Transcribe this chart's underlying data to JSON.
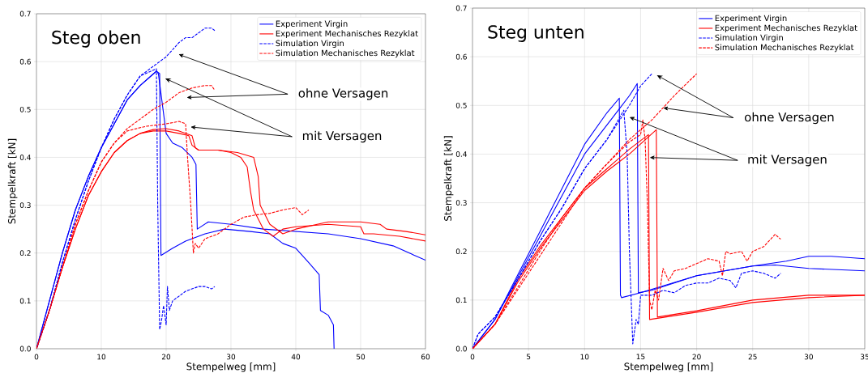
{
  "chart_data": [
    {
      "type": "line",
      "title": "Steg oben",
      "xlabel": "Stempelweg [mm]",
      "ylabel": "Stempelkraft [kN]",
      "xlim": [
        0,
        60
      ],
      "ylim": [
        0,
        0.7
      ],
      "xticks": [
        0,
        10,
        20,
        30,
        40,
        50,
        60
      ],
      "yticks": [
        {
          "value": 0,
          "label": "0.0"
        },
        0.1,
        0.2,
        0.3,
        0.4,
        0.5,
        0.6,
        0.7
      ],
      "grid": true,
      "legend": "top right",
      "annotations": [
        "ohne Versagen",
        "mit Versagen"
      ],
      "series": [
        {
          "name": "Experiment Virgin",
          "color": "#0000ff",
          "line_style": "solid",
          "x": [
            0,
            2,
            4,
            6,
            8,
            10,
            12,
            14,
            16,
            18.5,
            18.8,
            20,
            21,
            22.5,
            24,
            24.6,
            24.8,
            26.5,
            30,
            35,
            40,
            45,
            50,
            55,
            60
          ],
          "values": [
            0,
            0.1,
            0.2,
            0.29,
            0.36,
            0.42,
            0.47,
            0.52,
            0.55,
            0.58,
            0.575,
            0.45,
            0.43,
            0.42,
            0.4,
            0.385,
            0.25,
            0.265,
            0.26,
            0.25,
            0.245,
            0.24,
            0.23,
            0.215,
            0.185
          ]
        },
        {
          "color": "#0000ff",
          "line_style": "solid",
          "x": [
            0,
            2,
            4,
            6,
            8,
            10,
            12,
            14,
            16,
            18.5,
            19,
            19.2,
            21,
            23,
            26,
            29,
            33,
            36,
            38,
            40,
            42,
            43.6,
            43.8,
            45,
            45.8,
            45.9
          ],
          "values": [
            0,
            0.1,
            0.2,
            0.29,
            0.36,
            0.42,
            0.47,
            0.52,
            0.55,
            0.58,
            0.575,
            0.195,
            0.21,
            0.225,
            0.24,
            0.25,
            0.245,
            0.24,
            0.22,
            0.21,
            0.18,
            0.155,
            0.08,
            0.07,
            0.05,
            0
          ]
        },
        {
          "name": "Experiment Mechanisches Rezyklat",
          "color": "#ff0000",
          "line_style": "solid",
          "x": [
            0,
            2,
            4,
            6,
            8,
            10,
            12,
            14,
            16,
            18,
            20,
            22,
            23.5,
            24,
            25,
            28,
            30,
            31.5,
            32.5,
            33,
            33.5,
            35,
            36.5,
            38,
            40,
            45,
            50,
            50.5,
            52,
            56,
            60
          ],
          "values": [
            0,
            0.08,
            0.17,
            0.25,
            0.32,
            0.37,
            0.41,
            0.435,
            0.45,
            0.455,
            0.455,
            0.45,
            0.445,
            0.425,
            0.415,
            0.415,
            0.41,
            0.4,
            0.38,
            0.33,
            0.29,
            0.25,
            0.235,
            0.25,
            0.255,
            0.26,
            0.255,
            0.24,
            0.24,
            0.235,
            0.225
          ]
        },
        {
          "color": "#ff0000",
          "line_style": "solid",
          "x": [
            0,
            2,
            4,
            6,
            8,
            10,
            12,
            14,
            16,
            18,
            20,
            22,
            24,
            24.5,
            25,
            28,
            31,
            33.5,
            34.2,
            34.5,
            36,
            38,
            40,
            45,
            50,
            53,
            54,
            57,
            60
          ],
          "values": [
            0,
            0.08,
            0.17,
            0.25,
            0.32,
            0.37,
            0.41,
            0.435,
            0.45,
            0.458,
            0.46,
            0.455,
            0.445,
            0.42,
            0.415,
            0.415,
            0.41,
            0.4,
            0.36,
            0.3,
            0.26,
            0.24,
            0.25,
            0.265,
            0.265,
            0.26,
            0.25,
            0.245,
            0.238
          ]
        },
        {
          "name": "Simulation Virgin",
          "color": "#0000ff",
          "line_style": "dashed",
          "x": [
            0,
            2,
            4,
            6,
            8,
            10,
            12,
            14,
            16,
            18,
            20,
            22,
            23,
            24,
            26,
            27,
            27.5
          ],
          "values": [
            0,
            0.08,
            0.18,
            0.27,
            0.35,
            0.42,
            0.48,
            0.53,
            0.57,
            0.59,
            0.61,
            0.64,
            0.65,
            0.65,
            0.67,
            0.67,
            0.665
          ]
        },
        {
          "color": "#0000ff",
          "line_style": "dashed",
          "x": [
            0,
            2,
            4,
            6,
            8,
            10,
            12,
            14,
            16,
            18.5,
            18.7,
            19,
            19.3,
            19.6,
            20,
            20.2,
            20.5,
            21,
            22,
            23,
            24,
            25,
            26,
            27,
            27.5
          ],
          "values": [
            0,
            0.08,
            0.18,
            0.27,
            0.35,
            0.42,
            0.48,
            0.53,
            0.57,
            0.585,
            0.3,
            0.04,
            0.06,
            0.09,
            0.05,
            0.13,
            0.08,
            0.1,
            0.11,
            0.12,
            0.125,
            0.13,
            0.13,
            0.125,
            0.13
          ]
        },
        {
          "name": "Simulation Mechanisches Rezyklat",
          "color": "#ff0000",
          "line_style": "dashed",
          "x": [
            0,
            2,
            4,
            6,
            8,
            10,
            12,
            14,
            16,
            18,
            20,
            22,
            24,
            26,
            27,
            27.5
          ],
          "values": [
            0,
            0.08,
            0.17,
            0.26,
            0.33,
            0.39,
            0.43,
            0.46,
            0.48,
            0.5,
            0.515,
            0.535,
            0.545,
            0.55,
            0.55,
            0.54
          ]
        },
        {
          "color": "#ff0000",
          "line_style": "dashed",
          "x": [
            0,
            2,
            4,
            6,
            8,
            10,
            12,
            14,
            16,
            17,
            20,
            22,
            23,
            23.3,
            23.8,
            24.2,
            24.5,
            25,
            26,
            28,
            30,
            32,
            34,
            36,
            38,
            40,
            41,
            42
          ],
          "values": [
            0,
            0.08,
            0.17,
            0.26,
            0.33,
            0.39,
            0.43,
            0.455,
            0.462,
            0.465,
            0.47,
            0.475,
            0.47,
            0.4,
            0.3,
            0.2,
            0.22,
            0.21,
            0.23,
            0.24,
            0.26,
            0.275,
            0.28,
            0.283,
            0.29,
            0.295,
            0.28,
            0.29
          ]
        }
      ]
    },
    {
      "type": "line",
      "title": "Steg unten",
      "xlabel": "Stempelweg [mm]",
      "ylabel": "Stempelkraft [kN]",
      "xlim": [
        0,
        35
      ],
      "ylim": [
        0,
        0.7
      ],
      "xticks": [
        0,
        5,
        10,
        15,
        20,
        25,
        30,
        35
      ],
      "yticks": [
        {
          "value": 0,
          "label": "0.0"
        },
        0.1,
        0.2,
        0.3,
        0.4,
        0.5,
        0.6,
        0.7
      ],
      "grid": true,
      "legend": "top right",
      "annotations": [
        {
          "text": "ohne Versagen",
          "x": 17,
          "y": 0.495
        },
        {
          "text": "mit Versagen",
          "x": 15.8,
          "y": 0.393
        }
      ],
      "series": [
        {
          "name": "Experiment Virgin",
          "color": "#0000ff",
          "line_style": "solid",
          "x": [
            0,
            2,
            4,
            6,
            8,
            10,
            12,
            13.1,
            13.2,
            13.3,
            15,
            20,
            25,
            27,
            30,
            35
          ],
          "values": [
            0,
            0.06,
            0.15,
            0.24,
            0.33,
            0.42,
            0.485,
            0.515,
            0.11,
            0.105,
            0.115,
            0.15,
            0.17,
            0.172,
            0.165,
            0.16
          ]
        },
        {
          "color": "#0000ff",
          "line_style": "solid",
          "x": [
            0,
            2,
            4,
            6,
            8,
            10,
            12,
            13,
            14,
            14.7,
            14.8,
            16,
            20,
            25,
            28,
            30,
            32,
            35
          ],
          "values": [
            0,
            0.06,
            0.145,
            0.23,
            0.315,
            0.4,
            0.46,
            0.49,
            0.52,
            0.545,
            0.115,
            0.12,
            0.15,
            0.17,
            0.18,
            0.19,
            0.19,
            0.185
          ]
        },
        {
          "name": "Experiment Mechanisches Rezyklat",
          "color": "#ff0000",
          "line_style": "solid",
          "x": [
            0,
            2,
            4,
            6,
            8,
            10,
            12,
            14,
            15.7,
            15.8,
            20,
            25,
            30,
            35
          ],
          "values": [
            0,
            0.05,
            0.14,
            0.21,
            0.27,
            0.33,
            0.37,
            0.41,
            0.44,
            0.06,
            0.075,
            0.095,
            0.105,
            0.11
          ]
        },
        {
          "color": "#ff0000",
          "line_style": "solid",
          "x": [
            0,
            2,
            4,
            6,
            8,
            10,
            12,
            14,
            16.4,
            16.5,
            20,
            25,
            30,
            35
          ],
          "values": [
            0,
            0.05,
            0.135,
            0.205,
            0.265,
            0.325,
            0.365,
            0.4,
            0.45,
            0.065,
            0.078,
            0.1,
            0.11,
            0.11
          ]
        },
        {
          "name": "Simulation Virgin",
          "color": "#0000ff",
          "line_style": "dashed",
          "x": [
            0,
            0.5,
            2,
            4,
            6,
            8,
            10,
            12,
            14,
            15,
            16
          ],
          "values": [
            0,
            0.03,
            0.065,
            0.14,
            0.22,
            0.29,
            0.37,
            0.43,
            0.5,
            0.54,
            0.565
          ]
        },
        {
          "color": "#0000ff",
          "line_style": "dashed",
          "x": [
            0,
            0.5,
            2,
            4,
            6,
            8,
            10,
            12,
            13.5,
            13.8,
            14,
            14.3,
            14.6,
            14.8,
            15,
            16,
            17,
            18,
            19,
            20,
            21,
            22,
            23,
            23.5,
            24,
            25,
            26,
            27,
            27.5
          ],
          "values": [
            0,
            0.03,
            0.065,
            0.14,
            0.22,
            0.29,
            0.37,
            0.43,
            0.49,
            0.4,
            0.2,
            0.01,
            0.06,
            0.05,
            0.11,
            0.11,
            0.12,
            0.115,
            0.13,
            0.135,
            0.135,
            0.145,
            0.14,
            0.125,
            0.155,
            0.16,
            0.155,
            0.145,
            0.155
          ]
        },
        {
          "name": "Simulation Mechanisches Rezyklat",
          "color": "#ff0000",
          "line_style": "dashed",
          "x": [
            0,
            2,
            4,
            6,
            8,
            10,
            12,
            14,
            16,
            18,
            20
          ],
          "values": [
            0,
            0.05,
            0.12,
            0.19,
            0.26,
            0.33,
            0.38,
            0.43,
            0.47,
            0.52,
            0.565
          ]
        },
        {
          "color": "#ff0000",
          "line_style": "dashed",
          "x": [
            0,
            2,
            4,
            6,
            8,
            10,
            12,
            14,
            15,
            15.2,
            15.4,
            15.6,
            15.8,
            16,
            16.3,
            16.6,
            17,
            17.5,
            18,
            19,
            20,
            21,
            22,
            22.3,
            22.6,
            23,
            24,
            24.5,
            25,
            26,
            27,
            27.5
          ],
          "values": [
            0,
            0.05,
            0.125,
            0.2,
            0.27,
            0.33,
            0.38,
            0.425,
            0.44,
            0.47,
            0.43,
            0.3,
            0.1,
            0.08,
            0.12,
            0.1,
            0.165,
            0.14,
            0.16,
            0.165,
            0.175,
            0.185,
            0.18,
            0.15,
            0.2,
            0.195,
            0.2,
            0.18,
            0.2,
            0.21,
            0.235,
            0.225
          ]
        }
      ]
    }
  ]
}
